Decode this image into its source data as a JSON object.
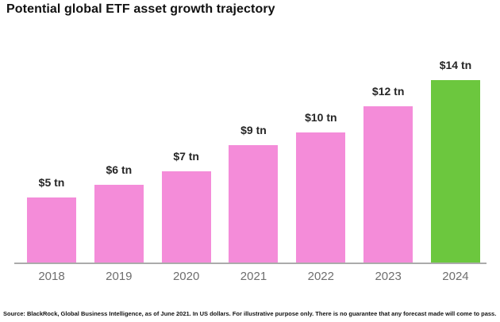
{
  "title": "Potential global ETF asset growth trajectory",
  "source": "Source: BlackRock, Global Business Intelligence, as of June 2021. In US dollars. For illustrative purpose only. There is no guarantee that any forecast made will come to pass.",
  "colors": {
    "bar_pink": "#f48cd9",
    "bar_green": "#6cc73e",
    "axis_line": "#ababab",
    "year_label": "#6e6e6e",
    "value_label": "#262626",
    "title": "#111111"
  },
  "chart_data": {
    "type": "bar",
    "title": "Potential global ETF asset growth trajectory",
    "categories": [
      "2018",
      "2019",
      "2020",
      "2021",
      "2022",
      "2023",
      "2024"
    ],
    "values": [
      5,
      6,
      7,
      9,
      10,
      12,
      14
    ],
    "value_labels": [
      "$5 tn",
      "$6 tn",
      "$7 tn",
      "$9 tn",
      "$10 tn",
      "$12 tn",
      "$14 tn"
    ],
    "unit": "US$ trillions",
    "xlabel": "",
    "ylabel": "",
    "ylim": [
      0,
      14
    ],
    "grid": false,
    "legend": false,
    "y_axis_shown": false,
    "highlight_index": 6,
    "highlight_meaning": "2024 forecast bar shown in green; all historical/interim bars pink"
  }
}
